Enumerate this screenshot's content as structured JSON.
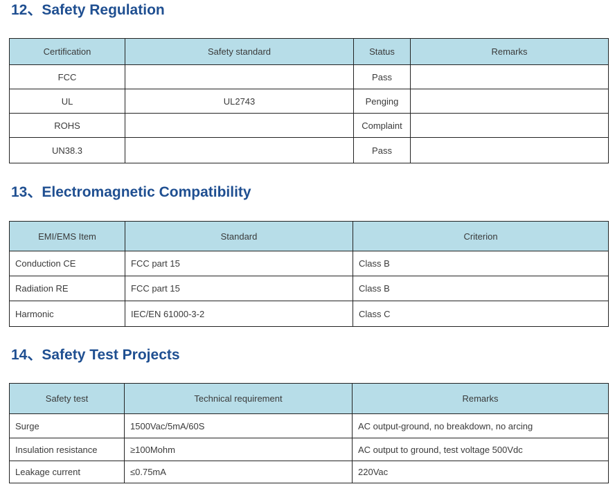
{
  "sections": [
    {
      "title": "12、Safety Regulation",
      "headers": [
        "Certification",
        "Safety standard",
        "Status",
        "Remarks"
      ],
      "rows": [
        [
          "FCC",
          "",
          "Pass",
          ""
        ],
        [
          "UL",
          "UL2743",
          "Penging",
          ""
        ],
        [
          "ROHS",
          "",
          "Complaint",
          ""
        ],
        [
          "UN38.3",
          "",
          "Pass",
          ""
        ]
      ]
    },
    {
      "title": "13、Electromagnetic Compatibility",
      "headers": [
        "EMI/EMS Item",
        "Standard",
        "Criterion"
      ],
      "rows": [
        [
          "Conduction CE",
          "FCC part 15",
          "Class B"
        ],
        [
          "Radiation RE",
          "FCC part 15",
          "Class B"
        ],
        [
          "Harmonic",
          "IEC/EN 61000-3-2",
          "Class C"
        ]
      ]
    },
    {
      "title": "14、Safety Test Projects",
      "headers": [
        "Safety test",
        "Technical requirement",
        "Remarks"
      ],
      "rows": [
        [
          "Surge",
          "1500Vac/5mA/60S",
          "AC output-ground, no breakdown, no arcing"
        ],
        [
          "Insulation resistance",
          "≥100Mohm",
          "AC output to ground, test voltage 500Vdc"
        ],
        [
          "Leakage current",
          "≤0.75mA",
          "220Vac"
        ]
      ]
    }
  ],
  "colors": {
    "heading": "#1f4f91",
    "header_fill": "#b7dde8",
    "border": "#222222"
  }
}
